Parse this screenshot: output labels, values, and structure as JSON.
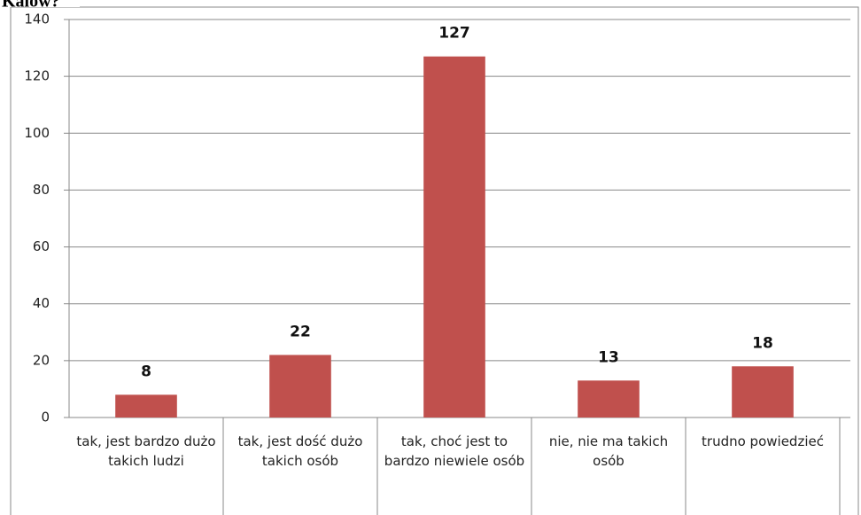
{
  "chart_data": {
    "type": "bar",
    "title": "Kalów?",
    "categories": [
      "tak, jest bardzo dużo takich ludzi",
      "tak, jest dość dużo takich osób",
      "tak, choć jest to bardzo niewiele osób",
      "nie, nie ma takich osób",
      "trudno powiedzieć"
    ],
    "values": [
      8,
      22,
      127,
      13,
      18
    ],
    "color": "#c0504d",
    "ylim": [
      0,
      140
    ],
    "yticks": [
      0,
      20,
      40,
      60,
      80,
      100,
      120,
      140
    ],
    "grid": true
  }
}
